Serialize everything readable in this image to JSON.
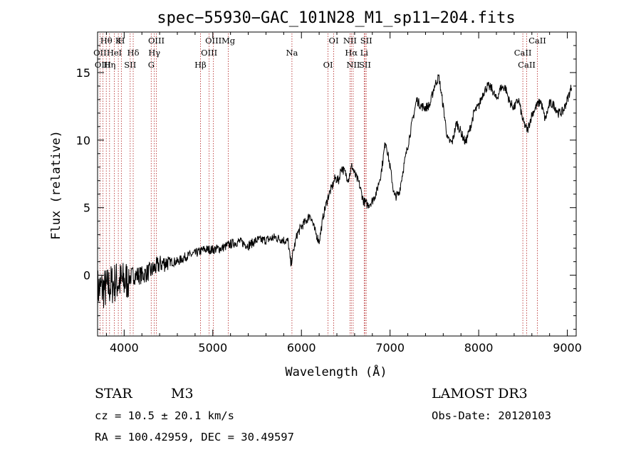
{
  "chart_data": {
    "type": "line",
    "title": "spec−55930−GAC_101N28_M1_sp11−204.fits",
    "xlabel": "Wavelength (Å)",
    "ylabel": "Flux (relative)",
    "xlim": [
      3700,
      9100
    ],
    "ylim": [
      -4.5,
      18
    ],
    "xticks": [
      4000,
      5000,
      6000,
      7000,
      8000,
      9000
    ],
    "yticks": [
      0,
      5,
      10,
      15
    ],
    "grid": false,
    "series": [
      {
        "name": "spectrum",
        "x": [
          3700,
          3800,
          3900,
          4000,
          4100,
          4200,
          4300,
          4400,
          4500,
          4600,
          4700,
          4800,
          4900,
          5000,
          5100,
          5200,
          5300,
          5400,
          5500,
          5600,
          5700,
          5800,
          5850,
          5880,
          5910,
          5950,
          6000,
          6050,
          6100,
          6150,
          6200,
          6250,
          6300,
          6350,
          6380,
          6420,
          6450,
          6500,
          6530,
          6570,
          6600,
          6650,
          6700,
          6750,
          6800,
          6850,
          6900,
          6950,
          7000,
          7050,
          7100,
          7150,
          7200,
          7250,
          7300,
          7350,
          7400,
          7450,
          7500,
          7550,
          7600,
          7650,
          7700,
          7750,
          7800,
          7850,
          7900,
          7950,
          8000,
          8050,
          8100,
          8150,
          8200,
          8250,
          8300,
          8350,
          8400,
          8450,
          8500,
          8550,
          8600,
          8650,
          8700,
          8750,
          8800,
          8850,
          8900,
          8950,
          9000,
          9050
        ],
        "y": [
          -1.0,
          -1.0,
          -0.5,
          -0.5,
          0,
          0,
          0.3,
          0.8,
          1.0,
          1.0,
          1.4,
          1.6,
          1.9,
          1.9,
          2.0,
          2.3,
          2.5,
          2.2,
          2.6,
          2.6,
          2.8,
          2.6,
          2.5,
          0.8,
          1.8,
          3.0,
          3.6,
          4.0,
          4.5,
          3.3,
          2.5,
          4.5,
          5.8,
          6.6,
          7.2,
          7.0,
          8.0,
          7.5,
          7.1,
          8.1,
          7.5,
          6.8,
          5.5,
          5.2,
          5.5,
          6.2,
          7.6,
          10.0,
          8.0,
          5.8,
          6.0,
          7.9,
          9.6,
          11.3,
          13.0,
          12.5,
          12.4,
          12.6,
          14.0,
          14.7,
          12.5,
          10.0,
          9.8,
          11.3,
          10.6,
          9.8,
          10.8,
          12.1,
          12.5,
          13.5,
          14.0,
          13.8,
          13.0,
          13.9,
          13.9,
          12.8,
          12.4,
          13.0,
          11.4,
          10.7,
          11.9,
          12.5,
          12.9,
          11.5,
          12.7,
          12.6,
          12.0,
          12.1,
          13.0,
          14.0
        ]
      }
    ],
    "lines": [
      {
        "label": "Hθ",
        "wl": 3798
      },
      {
        "label": "OII",
        "wl": 3727
      },
      {
        "label": "OIII",
        "wl": 3760
      },
      {
        "label": "K",
        "wl": 3934
      },
      {
        "label": "HeI",
        "wl": 3889
      },
      {
        "label": "Hη",
        "wl": 3835
      },
      {
        "label": "H",
        "wl": 3968
      },
      {
        "label": "Hδ",
        "wl": 4102
      },
      {
        "label": "SII",
        "wl": 4068
      },
      {
        "label": "OIII",
        "wl": 4363
      },
      {
        "label": "Hγ",
        "wl": 4340
      },
      {
        "label": "G",
        "wl": 4305
      },
      {
        "label": "OIII",
        "wl": 5007
      },
      {
        "label": "OIII",
        "wl": 4959
      },
      {
        "label": "Hβ",
        "wl": 4861
      },
      {
        "label": "Mg",
        "wl": 5175
      },
      {
        "label": "Na",
        "wl": 5893
      },
      {
        "label": "OI",
        "wl": 6300
      },
      {
        "label": "OI",
        "wl": 6364
      },
      {
        "label": "Hα",
        "wl": 6563
      },
      {
        "label": "SII",
        "wl": 6717
      },
      {
        "label": "NII",
        "wl": 6548
      },
      {
        "label": "Li",
        "wl": 6708
      },
      {
        "label": "NII",
        "wl": 6584
      },
      {
        "label": "SII",
        "wl": 6731
      },
      {
        "label": "CaII",
        "wl": 8498
      },
      {
        "label": "CaII",
        "wl": 8542
      },
      {
        "label": "CaII",
        "wl": 8662
      }
    ]
  },
  "info": {
    "class": "STAR",
    "subclass": "M3",
    "survey": "LAMOST DR3",
    "cz": "cz = 10.5 ± 20.1 km/s",
    "obs_date": "Obs-Date: 20120103",
    "radec": "RA = 100.42959, DEC =  30.49597"
  },
  "colors": {
    "line_marker": "#b22222",
    "spectrum": "#000000"
  }
}
